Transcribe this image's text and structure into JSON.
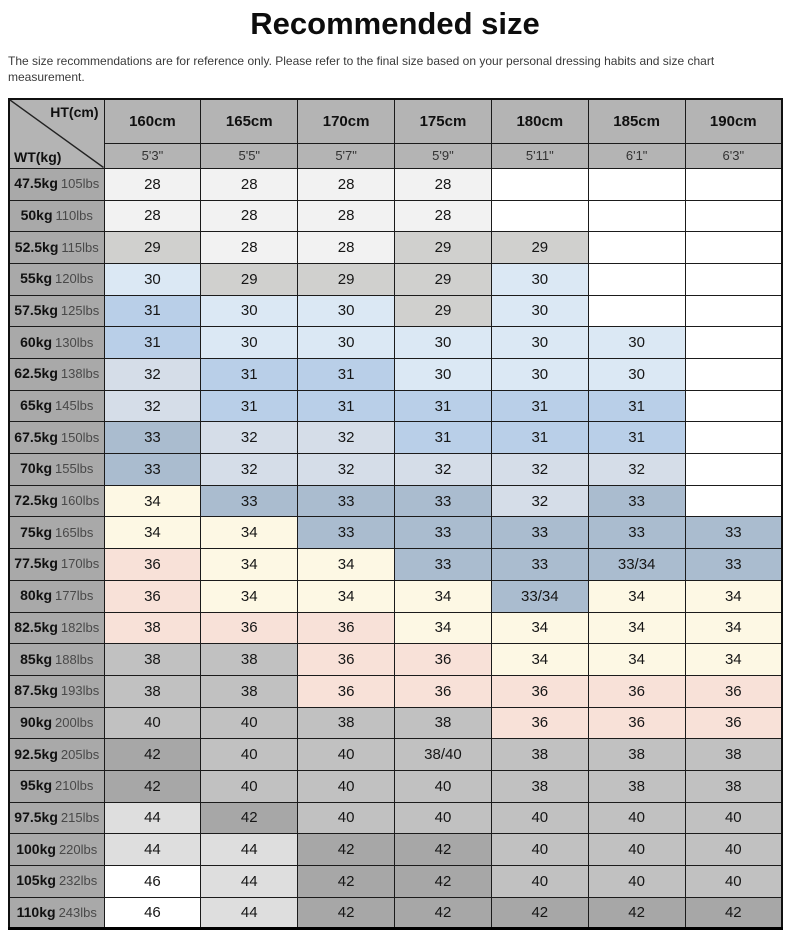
{
  "title": "Recommended size",
  "subtitle": "The size recommendations are for reference only. Please refer to the final size based on your personal dressing habits and size chart measurement.",
  "colors": {
    "header_bg": "#b4b4b4",
    "row_label_bg": "#a9a9a9",
    "table_border": "#1b1b1b",
    "bands": {
      "s28": "#f2f2f2",
      "s29": "#d0d0ce",
      "s30": "#dbe8f4",
      "s31": "#b9cfe8",
      "s32": "#d5dde8",
      "s33": "#aabccf",
      "s34": "#fdf8e4",
      "s36": "#f8e1d8",
      "g38": "#c1c1c1",
      "g42": "#a7a7a7",
      "g44": "#dedede",
      "w46": "#ffffff",
      "empty": "#ffffff"
    }
  },
  "chart_data": {
    "type": "table",
    "title": "Recommended size",
    "corner": {
      "top_right_label": "HT(cm)",
      "bottom_left_label": "WT(kg)"
    },
    "columns_cm": [
      "160cm",
      "165cm",
      "170cm",
      "175cm",
      "180cm",
      "185cm",
      "190cm"
    ],
    "columns_ft": [
      "5'3\"",
      "5'5\"",
      "5'7\"",
      "5'9\"",
      "5'11\"",
      "6'1\"",
      "6'3\""
    ],
    "rows": [
      {
        "kg": "47.5kg",
        "lbs": "105lbs",
        "cells": [
          [
            "28",
            "s28"
          ],
          [
            "28",
            "s28"
          ],
          [
            "28",
            "s28"
          ],
          [
            "28",
            "s28"
          ],
          [
            "",
            "empty"
          ],
          [
            "",
            "empty"
          ],
          [
            "",
            "empty"
          ]
        ]
      },
      {
        "kg": "50kg",
        "lbs": "110lbs",
        "cells": [
          [
            "28",
            "s28"
          ],
          [
            "28",
            "s28"
          ],
          [
            "28",
            "s28"
          ],
          [
            "28",
            "s28"
          ],
          [
            "",
            "empty"
          ],
          [
            "",
            "empty"
          ],
          [
            "",
            "empty"
          ]
        ]
      },
      {
        "kg": "52.5kg",
        "lbs": "115lbs",
        "cells": [
          [
            "29",
            "s29"
          ],
          [
            "28",
            "s28"
          ],
          [
            "28",
            "s28"
          ],
          [
            "29",
            "s29"
          ],
          [
            "29",
            "s29"
          ],
          [
            "",
            "empty"
          ],
          [
            "",
            "empty"
          ]
        ]
      },
      {
        "kg": "55kg",
        "lbs": "120lbs",
        "cells": [
          [
            "30",
            "s30"
          ],
          [
            "29",
            "s29"
          ],
          [
            "29",
            "s29"
          ],
          [
            "29",
            "s29"
          ],
          [
            "30",
            "s30"
          ],
          [
            "",
            "empty"
          ],
          [
            "",
            "empty"
          ]
        ]
      },
      {
        "kg": "57.5kg",
        "lbs": "125lbs",
        "cells": [
          [
            "31",
            "s31"
          ],
          [
            "30",
            "s30"
          ],
          [
            "30",
            "s30"
          ],
          [
            "29",
            "s29"
          ],
          [
            "30",
            "s30"
          ],
          [
            "",
            "empty"
          ],
          [
            "",
            "empty"
          ]
        ]
      },
      {
        "kg": "60kg",
        "lbs": "130lbs",
        "cells": [
          [
            "31",
            "s31"
          ],
          [
            "30",
            "s30"
          ],
          [
            "30",
            "s30"
          ],
          [
            "30",
            "s30"
          ],
          [
            "30",
            "s30"
          ],
          [
            "30",
            "s30"
          ],
          [
            "",
            "empty"
          ]
        ]
      },
      {
        "kg": "62.5kg",
        "lbs": "138lbs",
        "cells": [
          [
            "32",
            "s32"
          ],
          [
            "31",
            "s31"
          ],
          [
            "31",
            "s31"
          ],
          [
            "30",
            "s30"
          ],
          [
            "30",
            "s30"
          ],
          [
            "30",
            "s30"
          ],
          [
            "",
            "empty"
          ]
        ]
      },
      {
        "kg": "65kg",
        "lbs": "145lbs",
        "cells": [
          [
            "32",
            "s32"
          ],
          [
            "31",
            "s31"
          ],
          [
            "31",
            "s31"
          ],
          [
            "31",
            "s31"
          ],
          [
            "31",
            "s31"
          ],
          [
            "31",
            "s31"
          ],
          [
            "",
            "empty"
          ]
        ]
      },
      {
        "kg": "67.5kg",
        "lbs": "150lbs",
        "cells": [
          [
            "33",
            "s33"
          ],
          [
            "32",
            "s32"
          ],
          [
            "32",
            "s32"
          ],
          [
            "31",
            "s31"
          ],
          [
            "31",
            "s31"
          ],
          [
            "31",
            "s31"
          ],
          [
            "",
            "empty"
          ]
        ]
      },
      {
        "kg": "70kg",
        "lbs": "155lbs",
        "cells": [
          [
            "33",
            "s33"
          ],
          [
            "32",
            "s32"
          ],
          [
            "32",
            "s32"
          ],
          [
            "32",
            "s32"
          ],
          [
            "32",
            "s32"
          ],
          [
            "32",
            "s32"
          ],
          [
            "",
            "empty"
          ]
        ]
      },
      {
        "kg": "72.5kg",
        "lbs": "160lbs",
        "cells": [
          [
            "34",
            "s34"
          ],
          [
            "33",
            "s33"
          ],
          [
            "33",
            "s33"
          ],
          [
            "33",
            "s33"
          ],
          [
            "32",
            "s32"
          ],
          [
            "33",
            "s33"
          ],
          [
            "",
            "empty"
          ]
        ]
      },
      {
        "kg": "75kg",
        "lbs": "165lbs",
        "cells": [
          [
            "34",
            "s34"
          ],
          [
            "34",
            "s34"
          ],
          [
            "33",
            "s33"
          ],
          [
            "33",
            "s33"
          ],
          [
            "33",
            "s33"
          ],
          [
            "33",
            "s33"
          ],
          [
            "33",
            "s33"
          ]
        ]
      },
      {
        "kg": "77.5kg",
        "lbs": "170lbs",
        "cells": [
          [
            "36",
            "s36"
          ],
          [
            "34",
            "s34"
          ],
          [
            "34",
            "s34"
          ],
          [
            "33",
            "s33"
          ],
          [
            "33",
            "s33"
          ],
          [
            "33/34",
            "s33"
          ],
          [
            "33",
            "s33"
          ]
        ]
      },
      {
        "kg": "80kg",
        "lbs": "177lbs",
        "cells": [
          [
            "36",
            "s36"
          ],
          [
            "34",
            "s34"
          ],
          [
            "34",
            "s34"
          ],
          [
            "34",
            "s34"
          ],
          [
            "33/34",
            "s33"
          ],
          [
            "34",
            "s34"
          ],
          [
            "34",
            "s34"
          ]
        ]
      },
      {
        "kg": "82.5kg",
        "lbs": "182lbs",
        "cells": [
          [
            "38",
            "s36"
          ],
          [
            "36",
            "s36"
          ],
          [
            "36",
            "s36"
          ],
          [
            "34",
            "s34"
          ],
          [
            "34",
            "s34"
          ],
          [
            "34",
            "s34"
          ],
          [
            "34",
            "s34"
          ]
        ]
      },
      {
        "kg": "85kg",
        "lbs": "188lbs",
        "cells": [
          [
            "38",
            "g38"
          ],
          [
            "38",
            "g38"
          ],
          [
            "36",
            "s36"
          ],
          [
            "36",
            "s36"
          ],
          [
            "34",
            "s34"
          ],
          [
            "34",
            "s34"
          ],
          [
            "34",
            "s34"
          ]
        ]
      },
      {
        "kg": "87.5kg",
        "lbs": "193lbs",
        "cells": [
          [
            "38",
            "g38"
          ],
          [
            "38",
            "g38"
          ],
          [
            "36",
            "s36"
          ],
          [
            "36",
            "s36"
          ],
          [
            "36",
            "s36"
          ],
          [
            "36",
            "s36"
          ],
          [
            "36",
            "s36"
          ]
        ]
      },
      {
        "kg": "90kg",
        "lbs": "200lbs",
        "cells": [
          [
            "40",
            "g38"
          ],
          [
            "40",
            "g38"
          ],
          [
            "38",
            "g38"
          ],
          [
            "38",
            "g38"
          ],
          [
            "36",
            "s36"
          ],
          [
            "36",
            "s36"
          ],
          [
            "36",
            "s36"
          ]
        ]
      },
      {
        "kg": "92.5kg",
        "lbs": "205lbs",
        "cells": [
          [
            "42",
            "g42"
          ],
          [
            "40",
            "g38"
          ],
          [
            "40",
            "g38"
          ],
          [
            "38/40",
            "g38"
          ],
          [
            "38",
            "g38"
          ],
          [
            "38",
            "g38"
          ],
          [
            "38",
            "g38"
          ]
        ]
      },
      {
        "kg": "95kg",
        "lbs": "210lbs",
        "cells": [
          [
            "42",
            "g42"
          ],
          [
            "40",
            "g38"
          ],
          [
            "40",
            "g38"
          ],
          [
            "40",
            "g38"
          ],
          [
            "38",
            "g38"
          ],
          [
            "38",
            "g38"
          ],
          [
            "38",
            "g38"
          ]
        ]
      },
      {
        "kg": "97.5kg",
        "lbs": "215lbs",
        "cells": [
          [
            "44",
            "g44"
          ],
          [
            "42",
            "g42"
          ],
          [
            "40",
            "g38"
          ],
          [
            "40",
            "g38"
          ],
          [
            "40",
            "g38"
          ],
          [
            "40",
            "g38"
          ],
          [
            "40",
            "g38"
          ]
        ]
      },
      {
        "kg": "100kg",
        "lbs": "220lbs",
        "cells": [
          [
            "44",
            "g44"
          ],
          [
            "44",
            "g44"
          ],
          [
            "42",
            "g42"
          ],
          [
            "42",
            "g42"
          ],
          [
            "40",
            "g38"
          ],
          [
            "40",
            "g38"
          ],
          [
            "40",
            "g38"
          ]
        ]
      },
      {
        "kg": "105kg",
        "lbs": "232lbs",
        "cells": [
          [
            "46",
            "w46"
          ],
          [
            "44",
            "g44"
          ],
          [
            "42",
            "g42"
          ],
          [
            "42",
            "g42"
          ],
          [
            "40",
            "g38"
          ],
          [
            "40",
            "g38"
          ],
          [
            "40",
            "g38"
          ]
        ]
      },
      {
        "kg": "110kg",
        "lbs": "243lbs",
        "cells": [
          [
            "46",
            "w46"
          ],
          [
            "44",
            "g44"
          ],
          [
            "42",
            "g42"
          ],
          [
            "42",
            "g42"
          ],
          [
            "42",
            "g42"
          ],
          [
            "42",
            "g42"
          ],
          [
            "42",
            "g42"
          ]
        ]
      }
    ]
  }
}
